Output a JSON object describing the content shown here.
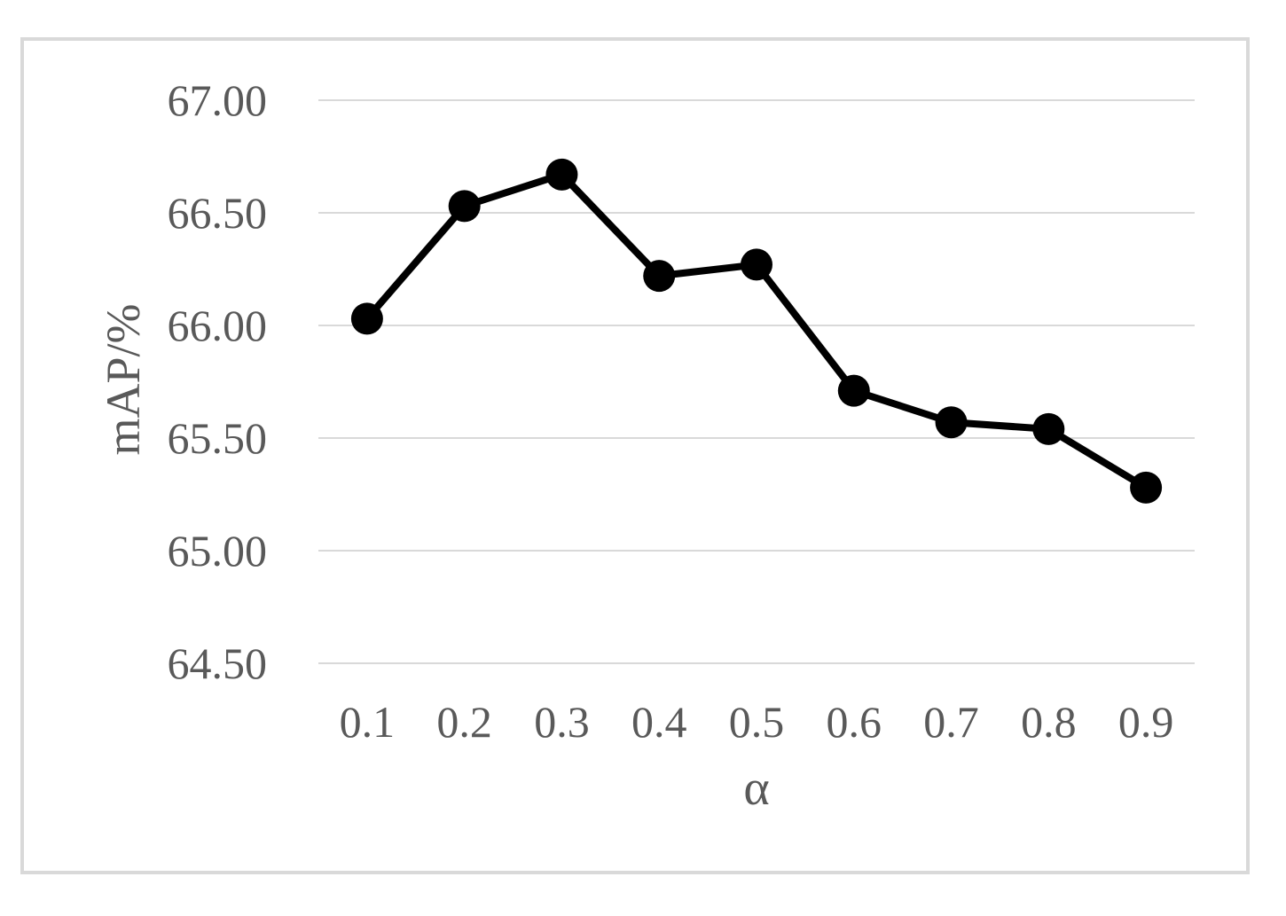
{
  "figure": {
    "background_color": "#ffffff",
    "frame_border_color": "#d9d9d9"
  },
  "chart_data": {
    "type": "line",
    "title": "",
    "xlabel": "α",
    "ylabel": "mAP/%",
    "categories": [
      "0.1",
      "0.2",
      "0.3",
      "0.4",
      "0.5",
      "0.6",
      "0.7",
      "0.8",
      "0.9"
    ],
    "series": [
      {
        "name": "mAP",
        "values": [
          66.03,
          66.53,
          66.67,
          66.22,
          66.27,
          65.71,
          65.57,
          65.54,
          65.28
        ]
      }
    ],
    "ylim": [
      64.5,
      67.0
    ],
    "yticks": [
      67.0,
      66.5,
      66.0,
      65.5,
      65.0,
      64.5
    ],
    "ytick_labels": [
      "67.00",
      "66.50",
      "66.00",
      "65.50",
      "65.00",
      "64.50"
    ],
    "grid": true,
    "legend_position": "none",
    "line_color": "#000000",
    "marker": "circle",
    "marker_color": "#000000",
    "gridline_color": "#d9d9d9",
    "tick_text_color": "#595959"
  }
}
